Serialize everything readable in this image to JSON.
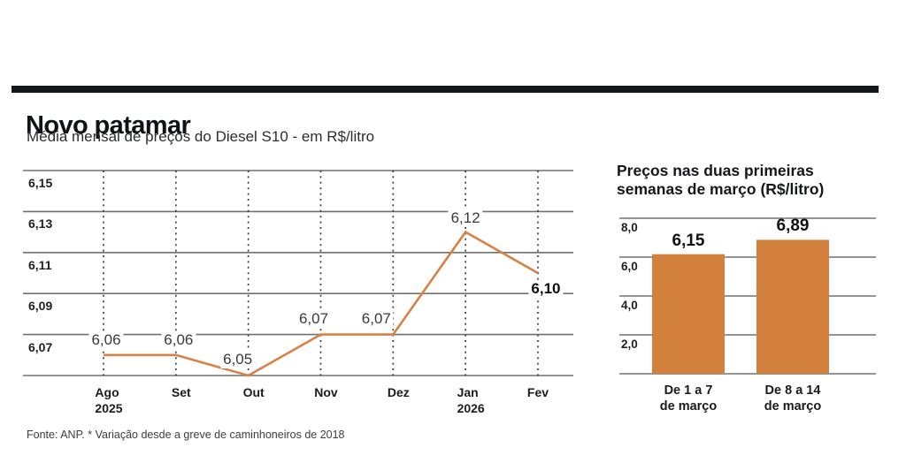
{
  "page": {
    "title": "Novo patamar",
    "subtitle": "Média mensal de preços do Diesel S10 - em R$/litro",
    "source_note": "Fonte: ANP. * Variação desde a greve de caminhoneiros de 2018"
  },
  "colors": {
    "rule_black": "#13181d",
    "line_orange": "#d98145",
    "bar_orange": "#d2803c",
    "grid_gray": "#707070",
    "dotted_gray": "#3f3f3f"
  },
  "chart_data": [
    {
      "type": "line",
      "title": "Média mensal de preços do Diesel S10 - em R$/litro",
      "categories": [
        "Ago 2025",
        "Set",
        "Out",
        "Nov",
        "Dez",
        "Jan 2026",
        "Fev"
      ],
      "x_tick_lines": [
        [
          "Ago",
          "2025"
        ],
        [
          "Set"
        ],
        [
          "Out"
        ],
        [
          "Nov"
        ],
        [
          "Dez"
        ],
        [
          "Jan",
          "2026"
        ],
        [
          "Fev"
        ]
      ],
      "values": [
        6.06,
        6.06,
        6.05,
        6.07,
        6.07,
        6.12,
        6.1
      ],
      "point_labels": [
        "6,06",
        "6,06",
        "6,05",
        "6,07",
        "6,07",
        "6,12",
        "6,10"
      ],
      "emphasized_point_index": 6,
      "y_tick_labels": [
        "6,15",
        "6,13",
        "6,11",
        "6,09",
        "6,07"
      ],
      "y_gridline_values": [
        6.15,
        6.13,
        6.11,
        6.09,
        6.07,
        6.05
      ],
      "ylim": [
        6.05,
        6.15
      ],
      "grid": true,
      "xgrid_style": "dotted-vertical",
      "legend": "none",
      "line_color": "#d98145"
    },
    {
      "type": "bar",
      "title": "Preços nas duas primeiras semanas de março (R$/litro)",
      "categories": [
        "De 1 a 7 de março",
        "De 8 a 14 de março"
      ],
      "category_lines": [
        [
          "De 1 a 7",
          "de março"
        ],
        [
          "De 8 a 14",
          "de março"
        ]
      ],
      "values": [
        6.15,
        6.89
      ],
      "bar_labels": [
        "6,15",
        "6,89"
      ],
      "y_tick_labels": [
        "8,0",
        "6,0",
        "4,0",
        "2,0"
      ],
      "y_gridline_values": [
        8,
        6,
        4,
        2,
        0
      ],
      "ylim": [
        0,
        8
      ],
      "grid": true,
      "legend": "none",
      "bar_color": "#d2803c"
    }
  ]
}
